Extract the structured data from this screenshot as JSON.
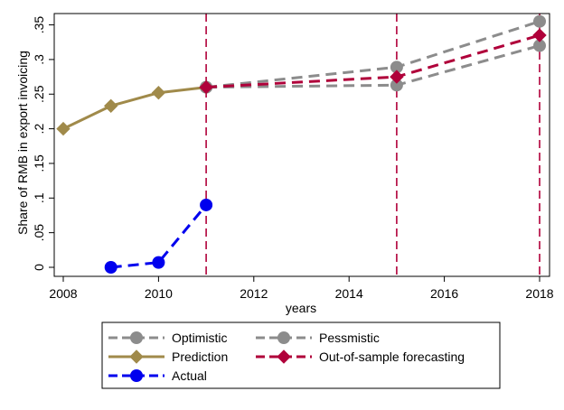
{
  "chart_data": {
    "type": "line",
    "title": "",
    "xlabel": "years",
    "ylabel": "Share of RMB in export invoicing",
    "xlim": [
      2008,
      2018
    ],
    "ylim": [
      0,
      0.36
    ],
    "x_ticks": [
      "2008",
      "2010",
      "2012",
      "2014",
      "2016",
      "2018"
    ],
    "y_ticks": [
      "0",
      ".05",
      ".1",
      ".15",
      ".2",
      ".25",
      ".3",
      ".35"
    ],
    "grid": false,
    "legend_position": "bottom",
    "vertical_lines": [
      2011,
      2015,
      2018
    ],
    "series": [
      {
        "name": "Optimistic",
        "x": [
          2011,
          2015,
          2018
        ],
        "y": [
          0.26,
          0.289,
          0.355
        ],
        "color": "#8c8c8c",
        "dash": "dashed",
        "marker": "circle"
      },
      {
        "name": "Pessmistic",
        "x": [
          2011,
          2015,
          2018
        ],
        "y": [
          0.26,
          0.263,
          0.32
        ],
        "color": "#8c8c8c",
        "dash": "dashed",
        "marker": "circle"
      },
      {
        "name": "Prediction",
        "x": [
          2008,
          2009,
          2010,
          2011
        ],
        "y": [
          0.2,
          0.233,
          0.252,
          0.26
        ],
        "color": "#a08a4a",
        "dash": "solid",
        "marker": "diamond"
      },
      {
        "name": "Out-of-sample forecasting",
        "x": [
          2011,
          2015,
          2018
        ],
        "y": [
          0.26,
          0.275,
          0.335
        ],
        "color": "#b0003a",
        "dash": "dashed",
        "marker": "diamond"
      },
      {
        "name": "Actual",
        "x": [
          2009,
          2010,
          2011
        ],
        "y": [
          0.0,
          0.007,
          0.09
        ],
        "color": "#0000ee",
        "dash": "dashed",
        "marker": "circle"
      }
    ]
  }
}
